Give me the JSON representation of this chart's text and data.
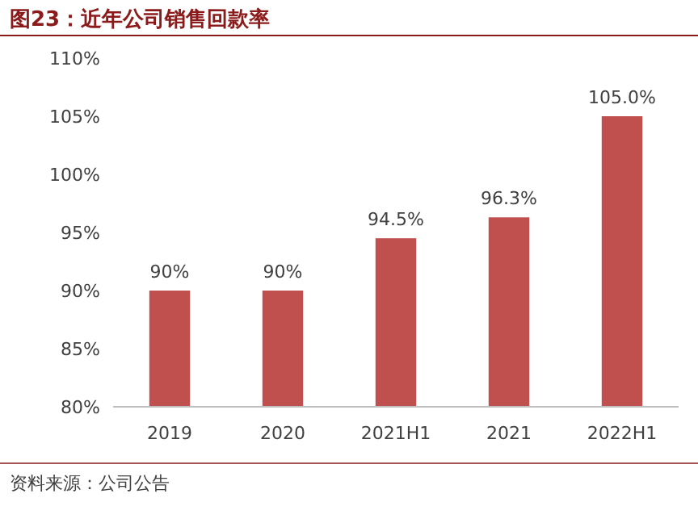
{
  "chart_data": {
    "type": "bar",
    "title": "图23：近年公司销售回款率",
    "categories": [
      "2019",
      "2020",
      "2021H1",
      "2021",
      "2022H1"
    ],
    "values": [
      90,
      90,
      94.5,
      96.3,
      105.0
    ],
    "value_labels": [
      "90%",
      "90%",
      "94.5%",
      "96.3%",
      "105.0%"
    ],
    "color": "#c0504d",
    "ylim": [
      80,
      110
    ],
    "yticks": [
      {
        "value": 80,
        "label": "80%"
      },
      {
        "value": 85,
        "label": "85%"
      },
      {
        "value": 90,
        "label": "90%"
      },
      {
        "value": 95,
        "label": "95%"
      },
      {
        "value": 100,
        "label": "100%"
      },
      {
        "value": 105,
        "label": "105%"
      },
      {
        "value": 110,
        "label": "110%"
      }
    ],
    "annotations": [
      "资料来源：公司公告"
    ]
  }
}
